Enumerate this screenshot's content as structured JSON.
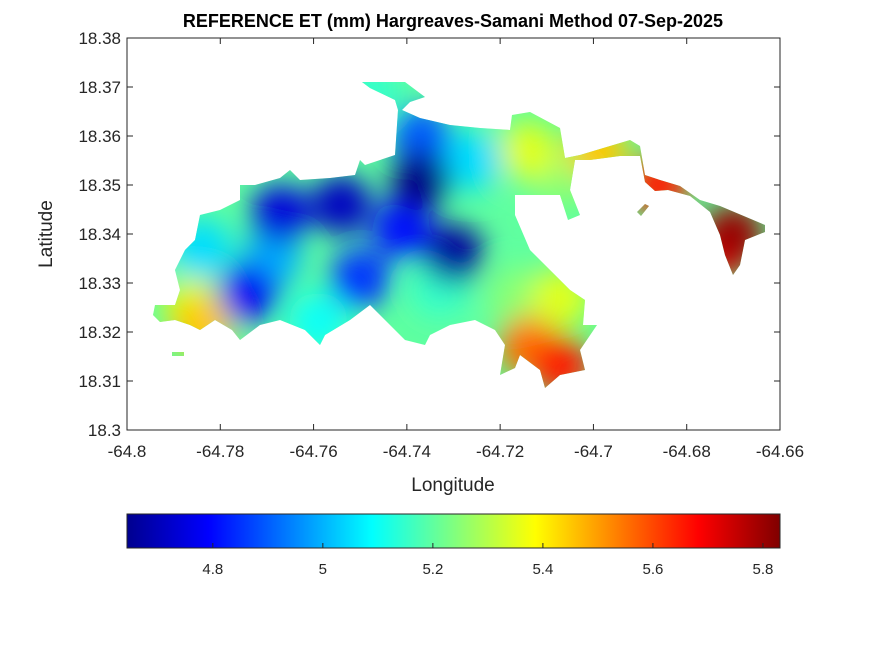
{
  "chart_data": {
    "type": "heatmap",
    "subtype": "filled-contour-map",
    "title": "REFERENCE ET (mm) Hargreaves-Samani Method  07-Sep-2025",
    "xlabel": "Longitude",
    "ylabel": "Latitude",
    "xlim": [
      -64.8,
      -64.66
    ],
    "ylim": [
      18.3,
      18.38
    ],
    "xticks": [
      "-64.8",
      "-64.78",
      "-64.76",
      "-64.74",
      "-64.72",
      "-64.7",
      "-64.68",
      "-64.66"
    ],
    "yticks": [
      "18.3",
      "18.31",
      "18.32",
      "18.33",
      "18.34",
      "18.35",
      "18.36",
      "18.37",
      "18.38"
    ],
    "grid": false,
    "colormap": "jet",
    "colorbar": {
      "location": "bottom",
      "range": [
        4.644,
        5.831
      ],
      "ticks": [
        "4.8",
        "5",
        "5.2",
        "5.4",
        "5.6",
        "5.8"
      ]
    },
    "base_value": 5.2,
    "samples": [
      {
        "lon": -64.737,
        "lat": 18.351,
        "value": 4.65
      },
      {
        "lon": -64.73,
        "lat": 18.336,
        "value": 4.68
      },
      {
        "lon": -64.754,
        "lat": 18.346,
        "value": 4.72
      },
      {
        "lon": -64.767,
        "lat": 18.344,
        "value": 4.75
      },
      {
        "lon": -64.774,
        "lat": 18.328,
        "value": 4.78
      },
      {
        "lon": -64.741,
        "lat": 18.341,
        "value": 4.8
      },
      {
        "lon": -64.75,
        "lat": 18.331,
        "value": 4.85
      },
      {
        "lon": -64.769,
        "lat": 18.335,
        "value": 5.0
      },
      {
        "lon": -64.784,
        "lat": 18.337,
        "value": 5.05
      },
      {
        "lon": -64.737,
        "lat": 18.36,
        "value": 4.9
      },
      {
        "lon": -64.726,
        "lat": 18.355,
        "value": 5.05
      },
      {
        "lon": -64.733,
        "lat": 18.329,
        "value": 5.15
      },
      {
        "lon": -64.714,
        "lat": 18.357,
        "value": 5.35
      },
      {
        "lon": -64.707,
        "lat": 18.351,
        "value": 5.25
      },
      {
        "lon": -64.716,
        "lat": 18.327,
        "value": 5.25
      },
      {
        "lon": -64.707,
        "lat": 18.327,
        "value": 5.35
      },
      {
        "lon": -64.786,
        "lat": 18.325,
        "value": 5.35
      },
      {
        "lon": -64.784,
        "lat": 18.321,
        "value": 5.45
      },
      {
        "lon": -64.714,
        "lat": 18.317,
        "value": 5.55
      },
      {
        "lon": -64.707,
        "lat": 18.313,
        "value": 5.65
      },
      {
        "lon": -64.699,
        "lat": 18.357,
        "value": 5.45
      },
      {
        "lon": -64.686,
        "lat": 18.35,
        "value": 5.65
      },
      {
        "lon": -64.67,
        "lat": 18.34,
        "value": 5.8
      },
      {
        "lon": -64.672,
        "lat": 18.337,
        "value": 5.7
      },
      {
        "lon": -64.748,
        "lat": 18.369,
        "value": 5.15
      },
      {
        "lon": -64.759,
        "lat": 18.322,
        "value": 5.1
      }
    ]
  }
}
